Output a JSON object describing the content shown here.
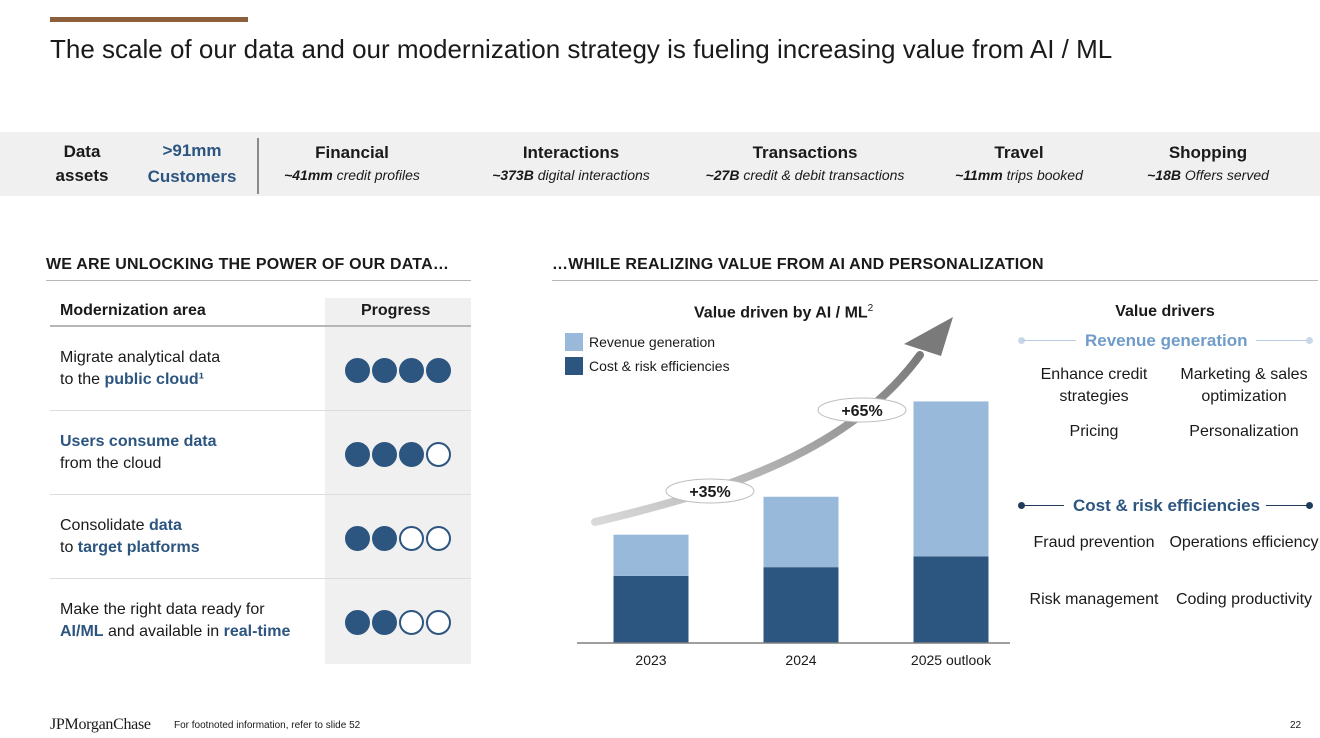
{
  "slide": {
    "title": "The scale of our data and our modernization strategy is fueling increasing value from AI / ML",
    "accent_color": "#8b5e3c",
    "page_number": "22",
    "footnote": "For footnoted information, refer to slide 52",
    "logo": "JPMorganChase"
  },
  "data_assets": {
    "label_line1": "Data",
    "label_line2": "assets",
    "customers_value": ">91mm",
    "customers_label": "Customers",
    "items": [
      {
        "heading": "Financial",
        "value": "~41mm",
        "desc": "credit profiles"
      },
      {
        "heading": "Interactions",
        "value": "~373B",
        "desc": "digital interactions"
      },
      {
        "heading": "Transactions",
        "value": "~27B",
        "desc": "credit & debit transactions"
      },
      {
        "heading": "Travel",
        "value": "~11mm",
        "desc": "trips booked"
      },
      {
        "heading": "Shopping",
        "value": "~18B",
        "desc": "Offers served"
      }
    ]
  },
  "left_section": {
    "heading": "WE ARE UNLOCKING THE POWER OF OUR DATA…",
    "col_area": "Modernization area",
    "col_progress": "Progress",
    "rows": [
      {
        "l1a": "Migrate analytical data",
        "l1b": "",
        "l2a": "to the ",
        "l2b": "public cloud",
        "l2c": "¹",
        "progress": 4
      },
      {
        "l1a": "",
        "l1b": "Users consume data",
        "l2a": "from the cloud",
        "l2b": "",
        "l2c": "",
        "progress": 3
      },
      {
        "l1a": "Consolidate ",
        "l1b": "data",
        "l2a": "to ",
        "l2b": "target platforms",
        "l2c": "",
        "progress": 2
      },
      {
        "l1a": "Make the right data ready for",
        "l1b": "",
        "l2a": "",
        "l2b": "AI/ML",
        "l2c": " and available in ",
        "l2d": "real-time",
        "progress": 2
      }
    ],
    "progress_max": 4,
    "accent_color": "#2c5580"
  },
  "right_section": {
    "heading": "…WHILE REALIZING VALUE FROM AI AND PERSONALIZATION"
  },
  "chart_data": {
    "type": "bar",
    "title": "Value driven by AI / ML",
    "title_sup": "2",
    "categories": [
      "2023",
      "2024",
      "2025 outlook"
    ],
    "stacked": true,
    "total_values": [
      100,
      135,
      223
    ],
    "series": [
      {
        "name": "Revenue generation",
        "color": "#99b9da",
        "values": [
          38,
          65,
          143
        ]
      },
      {
        "name": "Cost & risk efficiencies",
        "color": "#2c5580",
        "values": [
          62,
          70,
          80
        ]
      }
    ],
    "annotations": [
      "+35%",
      "+65%"
    ],
    "ylim": [
      0,
      240
    ],
    "legend_position": "top-left",
    "grid": false
  },
  "value_drivers": {
    "title": "Value drivers",
    "revenue": {
      "heading": "Revenue generation",
      "color": "#99b9da",
      "items": [
        "Enhance credit strategies",
        "Marketing & sales optimization",
        "Pricing",
        "Personalization"
      ]
    },
    "cost": {
      "heading": "Cost & risk efficiencies",
      "color": "#1f3c5c",
      "items": [
        "Fraud prevention",
        "Operations efficiency",
        "Risk management",
        "Coding productivity"
      ]
    }
  }
}
